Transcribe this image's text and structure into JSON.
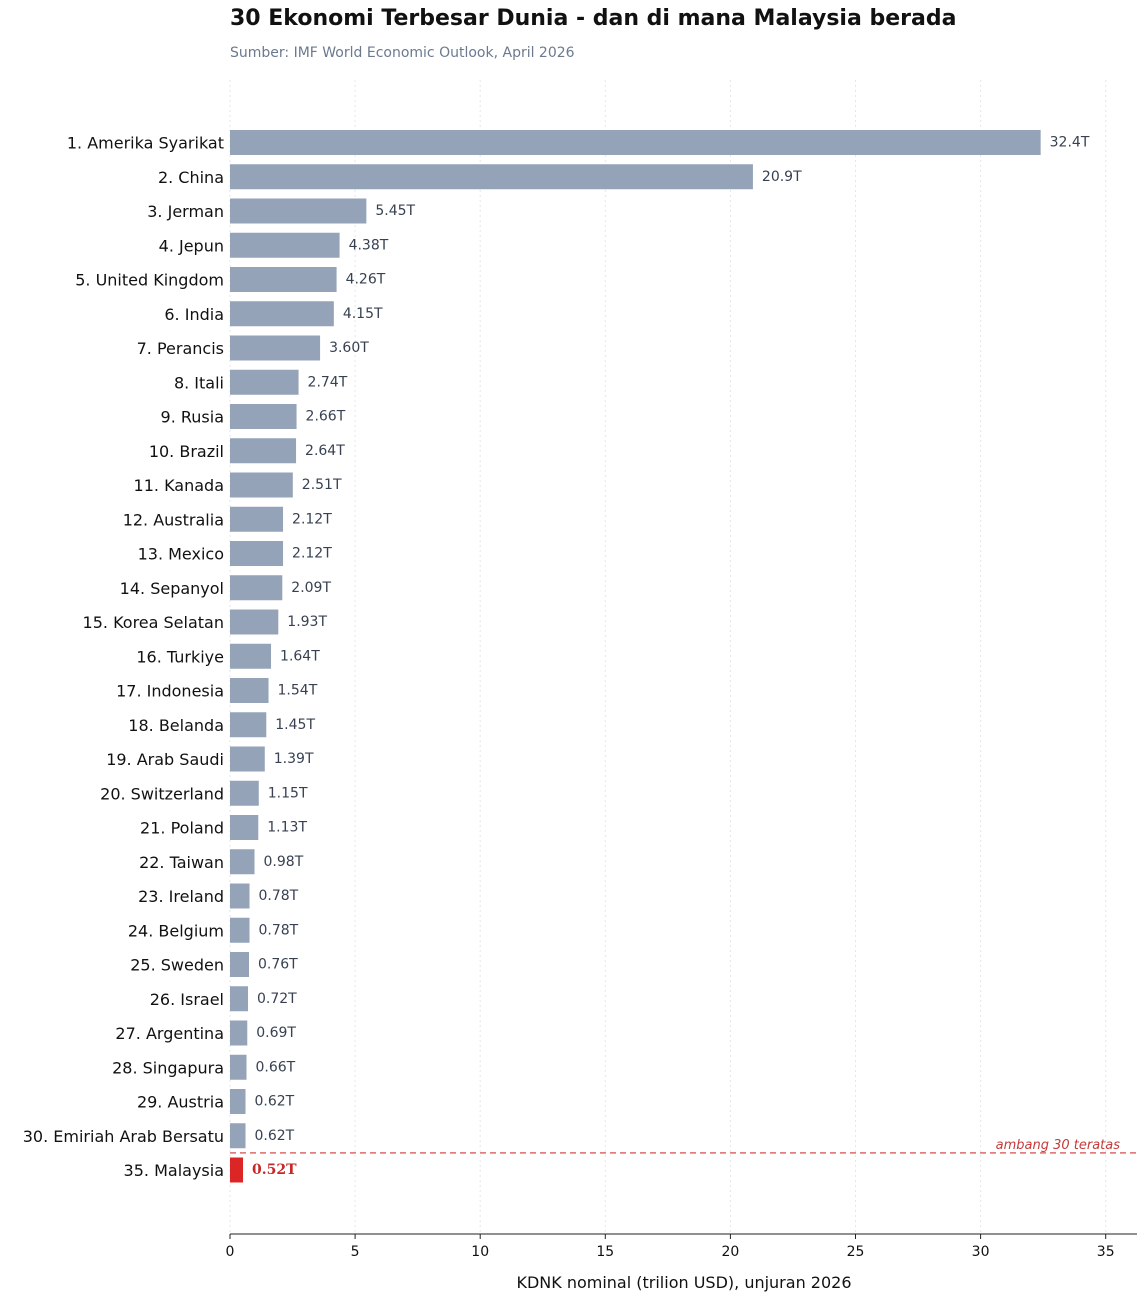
{
  "chart_data": {
    "type": "bar",
    "orientation": "horizontal",
    "title": "30 Ekonomi Terbesar Dunia - dan di mana Malaysia berada",
    "subtitle": "Sumber: IMF World Economic Outlook, April 2026",
    "xlabel": "KDNK nominal (trilion USD), unjuran 2026",
    "ylabel": "",
    "xlim": [
      0,
      36.3
    ],
    "xticks": [
      0,
      5,
      10,
      15,
      20,
      25,
      30,
      35
    ],
    "grid": "x, dotted",
    "legend": "none",
    "categories": [
      "1. Amerika Syarikat",
      "2. China",
      "3. Jerman",
      "4. Jepun",
      "5. United Kingdom",
      "6. India",
      "7. Perancis",
      "8. Itali",
      "9. Rusia",
      "10. Brazil",
      "11. Kanada",
      "12. Australia",
      "13. Mexico",
      "14. Sepanyol",
      "15. Korea Selatan",
      "16. Turkiye",
      "17. Indonesia",
      "18. Belanda",
      "19. Arab Saudi",
      "20. Switzerland",
      "21. Poland",
      "22. Taiwan",
      "23. Ireland",
      "24. Belgium",
      "25. Sweden",
      "26. Israel",
      "27. Argentina",
      "28. Singapura",
      "29. Austria",
      "30. Emiriah Arab Bersatu",
      "35. Malaysia"
    ],
    "values": [
      32.4,
      20.9,
      5.45,
      4.38,
      4.26,
      4.15,
      3.6,
      2.74,
      2.66,
      2.64,
      2.51,
      2.12,
      2.12,
      2.09,
      1.93,
      1.64,
      1.54,
      1.45,
      1.39,
      1.15,
      1.13,
      0.98,
      0.78,
      0.78,
      0.76,
      0.72,
      0.69,
      0.66,
      0.62,
      0.62,
      0.52
    ],
    "data_labels": [
      "32.4T",
      "20.9T",
      "5.45T",
      "4.38T",
      "4.26T",
      "4.15T",
      "3.60T",
      "2.74T",
      "2.66T",
      "2.64T",
      "2.51T",
      "2.12T",
      "2.12T",
      "2.09T",
      "1.93T",
      "1.64T",
      "1.54T",
      "1.45T",
      "1.39T",
      "1.15T",
      "1.13T",
      "0.98T",
      "0.78T",
      "0.78T",
      "0.76T",
      "0.72T",
      "0.69T",
      "0.66T",
      "0.62T",
      "0.62T",
      "0.52T"
    ],
    "highlight_index": 30,
    "annotation": "ambang 30 teratas",
    "colors": {
      "bar": "#94a3b8",
      "highlight": "#dc2626",
      "threshold_line": "#dc6b6b",
      "threshold_text": "#c63a3a",
      "value_label": "#374151",
      "highlight_label": "#c62828",
      "grid": "#e3e6ea"
    }
  }
}
